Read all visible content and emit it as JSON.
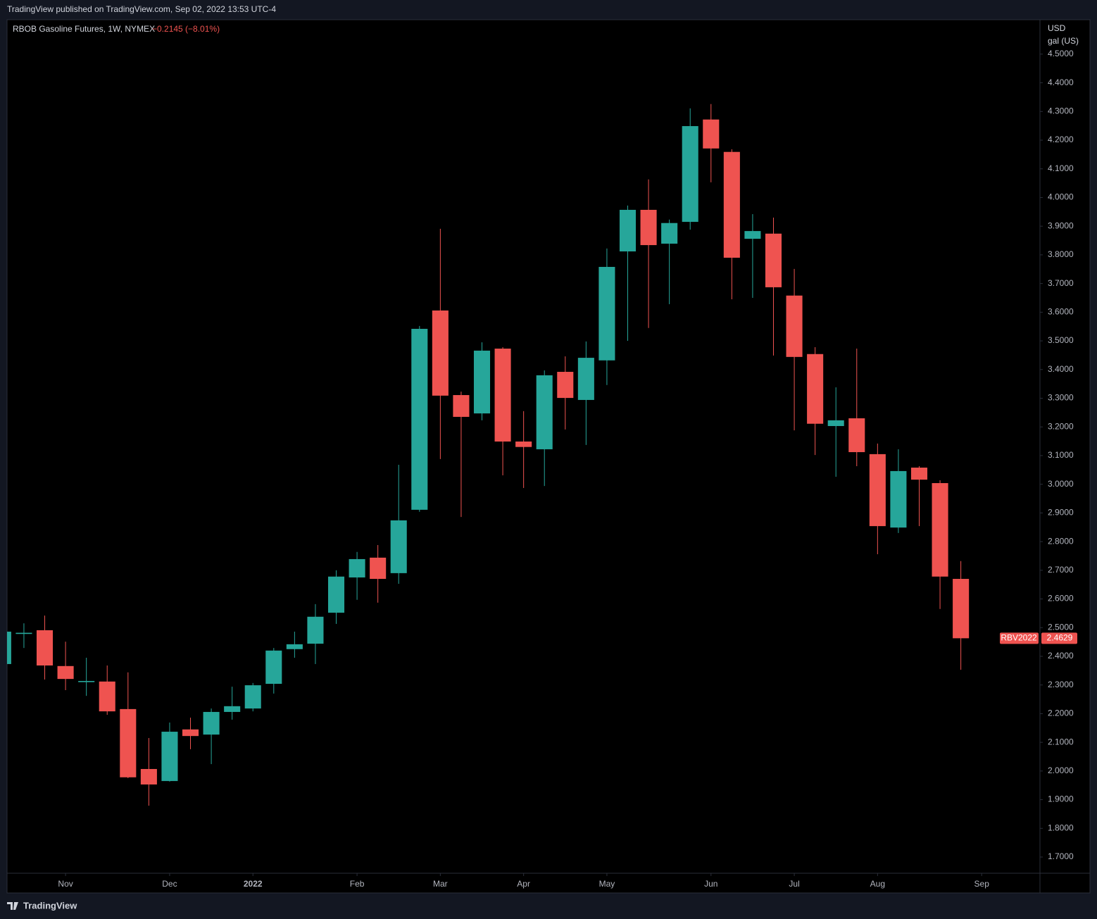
{
  "header": {
    "text": "TradingView published on TradingView.com, Sep 02, 2022 13:53 UTC-4"
  },
  "footer": {
    "brand": "TradingView"
  },
  "chart_data": {
    "type": "candlestick",
    "title": "RBOB Gasoline Futures, 1W, NYMEX",
    "change": "−0.2145 (−8.01%)",
    "currency": "USD",
    "unit": "gal (US)",
    "symbol_label": "RBV2022",
    "up_color": "#26a69a",
    "down_color": "#ef5350",
    "open": [
      2.373,
      2.478,
      2.491,
      2.366,
      2.31,
      2.312,
      2.216,
      2.007,
      1.965,
      2.145,
      2.127,
      2.206,
      2.218,
      2.304,
      2.425,
      2.444,
      2.552,
      2.675,
      2.744,
      2.69,
      2.911,
      3.606,
      3.311,
      3.247,
      3.473,
      3.149,
      3.122,
      3.392,
      3.294,
      3.432,
      3.812,
      3.957,
      3.839,
      3.915,
      4.272,
      4.159,
      3.856,
      3.874,
      3.658,
      3.454,
      3.203,
      3.23,
      3.105,
      2.849,
      3.058,
      3.004,
      2.67
    ],
    "high": [
      2.486,
      2.515,
      2.542,
      2.451,
      2.395,
      2.368,
      2.344,
      2.115,
      2.169,
      2.186,
      2.218,
      2.294,
      2.307,
      2.429,
      2.486,
      2.582,
      2.7,
      2.764,
      2.788,
      3.068,
      3.552,
      3.891,
      3.323,
      3.495,
      3.478,
      3.255,
      3.397,
      3.446,
      3.498,
      3.822,
      3.972,
      4.063,
      3.923,
      4.311,
      4.326,
      4.168,
      3.942,
      3.93,
      3.751,
      3.478,
      3.338,
      3.473,
      3.142,
      3.122,
      3.063,
      3.014,
      2.732
    ],
    "low": [
      2.373,
      2.429,
      2.319,
      2.282,
      2.262,
      2.196,
      1.975,
      1.879,
      1.963,
      2.076,
      2.024,
      2.179,
      2.208,
      2.27,
      2.395,
      2.373,
      2.513,
      2.597,
      2.587,
      2.653,
      2.904,
      3.088,
      2.886,
      3.223,
      3.031,
      2.987,
      2.994,
      3.191,
      3.137,
      3.346,
      3.5,
      3.545,
      3.628,
      3.888,
      4.053,
      3.645,
      3.65,
      3.449,
      3.188,
      3.102,
      3.026,
      3.063,
      2.756,
      2.83,
      2.854,
      2.565,
      2.353
    ],
    "close": [
      2.486,
      2.482,
      2.368,
      2.321,
      2.314,
      2.208,
      1.978,
      1.953,
      2.137,
      2.122,
      2.206,
      2.226,
      2.299,
      2.42,
      2.442,
      2.538,
      2.678,
      2.739,
      2.67,
      2.874,
      3.542,
      3.309,
      3.235,
      3.466,
      3.149,
      3.13,
      3.38,
      3.301,
      3.441,
      3.758,
      3.957,
      3.834,
      3.911,
      4.249,
      4.171,
      3.79,
      3.883,
      3.687,
      3.444,
      3.211,
      3.223,
      3.112,
      2.854,
      3.046,
      3.016,
      2.678,
      2.4629
    ],
    "xlim": [
      0.19,
      49.8
    ],
    "xticks": [
      {
        "value": 3,
        "label": "Nov"
      },
      {
        "value": 8,
        "label": "Dec"
      },
      {
        "value": 12,
        "label": "2022"
      },
      {
        "value": 17,
        "label": "Feb"
      },
      {
        "value": 21,
        "label": "Mar"
      },
      {
        "value": 25,
        "label": "Apr"
      },
      {
        "value": 29,
        "label": "May"
      },
      {
        "value": 34,
        "label": "Jun"
      },
      {
        "value": 38,
        "label": "Jul"
      },
      {
        "value": 42,
        "label": "Aug"
      },
      {
        "value": 47,
        "label": "Sep"
      }
    ],
    "ylim": [
      1.6435,
      4.62
    ],
    "yticks": [
      {
        "value": 1.7,
        "label": "1.7000"
      },
      {
        "value": 1.8,
        "label": "1.8000"
      },
      {
        "value": 1.9,
        "label": "1.9000"
      },
      {
        "value": 2.0,
        "label": "2.0000"
      },
      {
        "value": 2.1,
        "label": "2.1000"
      },
      {
        "value": 2.2,
        "label": "2.2000"
      },
      {
        "value": 2.3,
        "label": "2.3000"
      },
      {
        "value": 2.4,
        "label": "2.4000"
      },
      {
        "value": 2.5,
        "label": "2.5000"
      },
      {
        "value": 2.6,
        "label": "2.6000"
      },
      {
        "value": 2.7,
        "label": "2.7000"
      },
      {
        "value": 2.8,
        "label": "2.8000"
      },
      {
        "value": 2.9,
        "label": "2.9000"
      },
      {
        "value": 3.0,
        "label": "3.0000"
      },
      {
        "value": 3.1,
        "label": "3.1000"
      },
      {
        "value": 3.2,
        "label": "3.2000"
      },
      {
        "value": 3.3,
        "label": "3.3000"
      },
      {
        "value": 3.4,
        "label": "3.4000"
      },
      {
        "value": 3.5,
        "label": "3.5000"
      },
      {
        "value": 3.6,
        "label": "3.6000"
      },
      {
        "value": 3.7,
        "label": "3.7000"
      },
      {
        "value": 3.8,
        "label": "3.8000"
      },
      {
        "value": 3.9,
        "label": "3.9000"
      },
      {
        "value": 4.0,
        "label": "4.0000"
      },
      {
        "value": 4.1,
        "label": "4.1000"
      },
      {
        "value": 4.2,
        "label": "4.2000"
      },
      {
        "value": 4.3,
        "label": "4.3000"
      },
      {
        "value": 4.4,
        "label": "4.4000"
      },
      {
        "value": 4.5,
        "label": "4.5000"
      }
    ]
  }
}
